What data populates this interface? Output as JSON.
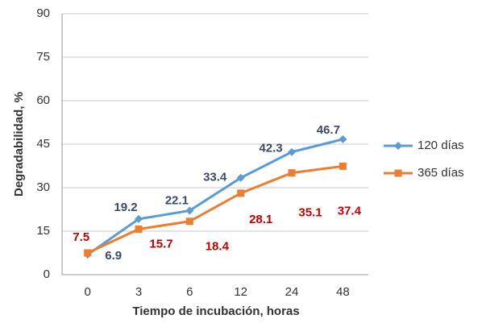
{
  "chart_data": {
    "type": "line",
    "categories": [
      "0",
      "3",
      "6",
      "12",
      "24",
      "48"
    ],
    "series": [
      {
        "name": "120 días",
        "color": "#5b9bd5",
        "marker": "diamond",
        "label_color": "#3b4a66",
        "values": [
          6.9,
          19.2,
          22.1,
          33.4,
          42.3,
          46.7
        ]
      },
      {
        "name": "365 días",
        "color": "#ed7d31",
        "marker": "square",
        "label_color": "#c00000",
        "values": [
          7.5,
          15.7,
          18.4,
          28.1,
          35.1,
          37.4
        ]
      }
    ],
    "x_label": "Tiempo de incubación, horas",
    "y_label": "Degradabilidad, %",
    "ylim": [
      0,
      90
    ],
    "yticks": [
      0,
      15,
      30,
      45,
      60,
      75,
      90
    ],
    "grid": true,
    "legend": "right"
  }
}
